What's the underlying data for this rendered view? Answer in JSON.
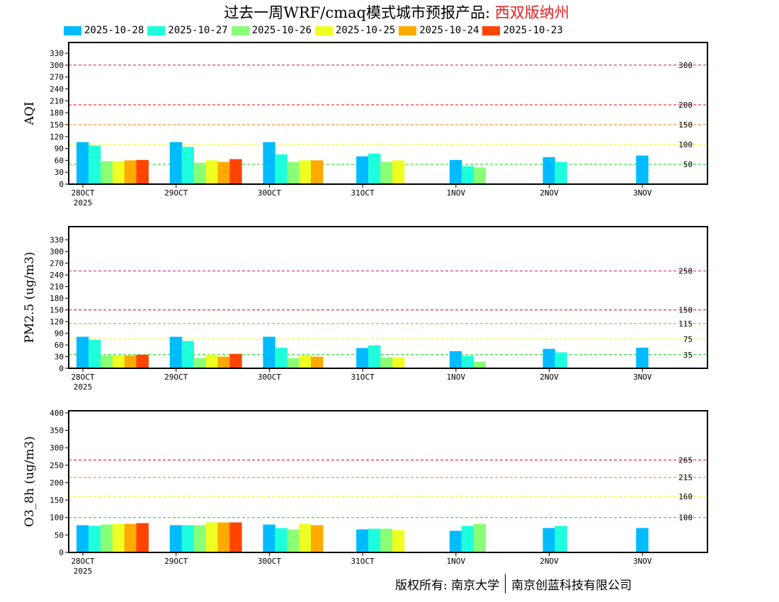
{
  "title": {
    "prefix": "过去一周WRF/cmaq模式城市预报产品: ",
    "location": "西双版纳州"
  },
  "footer": {
    "left": "版权所有: 南京大学",
    "right": "南京创蓝科技有限公司"
  },
  "colors": {
    "2025-10-28": "#00bbff",
    "2025-10-27": "#1effdd",
    "2025-10-26": "#88ff77",
    "2025-10-25": "#eeff22",
    "2025-10-24": "#ffaa00",
    "2025-10-23": "#ff4400"
  },
  "chart_data": [
    {
      "type": "bar",
      "ylabel": "AQI",
      "ylim": [
        0,
        357
      ],
      "yticks": [
        0,
        30,
        60,
        90,
        120,
        150,
        180,
        210,
        240,
        270,
        300,
        330
      ],
      "categories": [
        "28OCT",
        "29OCT",
        "30OCT",
        "31OCT",
        "1NOV",
        "2NOV",
        "3NOV"
      ],
      "year_label": "2025",
      "thresholds": [
        {
          "value": 300,
          "label": "300",
          "color": "#c0185a"
        },
        {
          "value": 200,
          "label": "200",
          "color": "#ff0000"
        },
        {
          "value": 150,
          "label": "150",
          "color": "#ff7700"
        },
        {
          "value": 100,
          "label": "100",
          "color": "#f0f000"
        },
        {
          "value": 50,
          "label": "50",
          "color": "#00dd00"
        }
      ],
      "series": [
        {
          "name": "2025-10-28",
          "values": [
            106,
            106,
            106,
            70,
            61,
            68,
            72
          ]
        },
        {
          "name": "2025-10-27",
          "values": [
            97,
            94,
            75,
            77,
            45,
            56,
            null
          ]
        },
        {
          "name": "2025-10-26",
          "values": [
            58,
            54,
            56,
            56,
            42,
            null,
            null
          ]
        },
        {
          "name": "2025-10-25",
          "values": [
            58,
            60,
            60,
            60,
            null,
            null,
            null
          ]
        },
        {
          "name": "2025-10-24",
          "values": [
            60,
            56,
            60,
            null,
            null,
            null,
            null
          ]
        },
        {
          "name": "2025-10-23",
          "values": [
            61,
            63,
            null,
            null,
            null,
            null,
            null
          ]
        }
      ]
    },
    {
      "type": "bar",
      "ylabel": "PM2.5 (ug/m3)",
      "ylim": [
        0,
        364
      ],
      "yticks": [
        0,
        30,
        60,
        90,
        120,
        150,
        180,
        210,
        240,
        270,
        300,
        330
      ],
      "categories": [
        "28OCT",
        "29OCT",
        "30OCT",
        "31OCT",
        "1NOV",
        "2NOV",
        "3NOV"
      ],
      "year_label": "2025",
      "thresholds": [
        {
          "value": 250,
          "label": "250",
          "color": "#d0107a"
        },
        {
          "value": 150,
          "label": "150",
          "color": "#dd0000"
        },
        {
          "value": 115,
          "label": "115",
          "color": "#ff7700"
        },
        {
          "value": 75,
          "label": "75",
          "color": "#f0f000"
        },
        {
          "value": 35,
          "label": "35",
          "color": "#00dd00"
        }
      ],
      "series": [
        {
          "name": "2025-10-28",
          "values": [
            81,
            81,
            81,
            52,
            44,
            50,
            53
          ]
        },
        {
          "name": "2025-10-27",
          "values": [
            73,
            70,
            53,
            59,
            32,
            41,
            null
          ]
        },
        {
          "name": "2025-10-26",
          "values": [
            33,
            26,
            26,
            28,
            17,
            null,
            null
          ]
        },
        {
          "name": "2025-10-25",
          "values": [
            33,
            35,
            33,
            28,
            null,
            null,
            null
          ]
        },
        {
          "name": "2025-10-24",
          "values": [
            33,
            30,
            30,
            null,
            null,
            null,
            null
          ]
        },
        {
          "name": "2025-10-23",
          "values": [
            35,
            37,
            null,
            null,
            null,
            null,
            null
          ]
        }
      ]
    },
    {
      "type": "bar",
      "ylabel": "O3_8h (ug/m3)",
      "ylim": [
        0,
        406
      ],
      "yticks": [
        0,
        50,
        100,
        150,
        200,
        250,
        300,
        350,
        400
      ],
      "categories": [
        "28OCT",
        "29OCT",
        "30OCT",
        "31OCT",
        "1NOV",
        "2NOV",
        "3NOV"
      ],
      "year_label": "2025",
      "thresholds": [
        {
          "value": 265,
          "label": "265",
          "color": "#ff0000"
        },
        {
          "value": 215,
          "label": "215",
          "color": "#ff7700"
        },
        {
          "value": 160,
          "label": "160",
          "color": "#f0f000"
        },
        {
          "value": 100,
          "label": "100",
          "color": "#00dd00"
        }
      ],
      "series": [
        {
          "name": "2025-10-28",
          "values": [
            78,
            78,
            80,
            66,
            62,
            70,
            70
          ]
        },
        {
          "name": "2025-10-27",
          "values": [
            76,
            78,
            70,
            68,
            76,
            76,
            null
          ]
        },
        {
          "name": "2025-10-26",
          "values": [
            80,
            78,
            66,
            68,
            82,
            null,
            null
          ]
        },
        {
          "name": "2025-10-25",
          "values": [
            82,
            86,
            82,
            64,
            null,
            null,
            null
          ]
        },
        {
          "name": "2025-10-24",
          "values": [
            82,
            86,
            78,
            null,
            null,
            null,
            null
          ]
        },
        {
          "name": "2025-10-23",
          "values": [
            84,
            86,
            null,
            null,
            null,
            null,
            null
          ]
        }
      ]
    }
  ]
}
